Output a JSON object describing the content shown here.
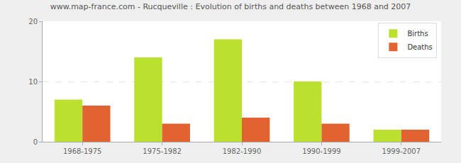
{
  "chart_data": {
    "type": "bar",
    "title": "www.map-france.com - Rucqueville : Evolution of births and deaths between 1968 and 2007",
    "categories": [
      "1968-1975",
      "1975-1982",
      "1982-1990",
      "1990-1999",
      "1999-2007"
    ],
    "series": [
      {
        "name": "Births",
        "color": "#bbe12f",
        "values": [
          7,
          14,
          17,
          10,
          2
        ]
      },
      {
        "name": "Deaths",
        "color": "#e06331",
        "values": [
          6,
          3,
          4,
          3,
          2
        ]
      }
    ],
    "ylim": [
      0,
      20
    ],
    "yticks": [
      0,
      10,
      20
    ],
    "grid": true,
    "legend": "top right"
  }
}
